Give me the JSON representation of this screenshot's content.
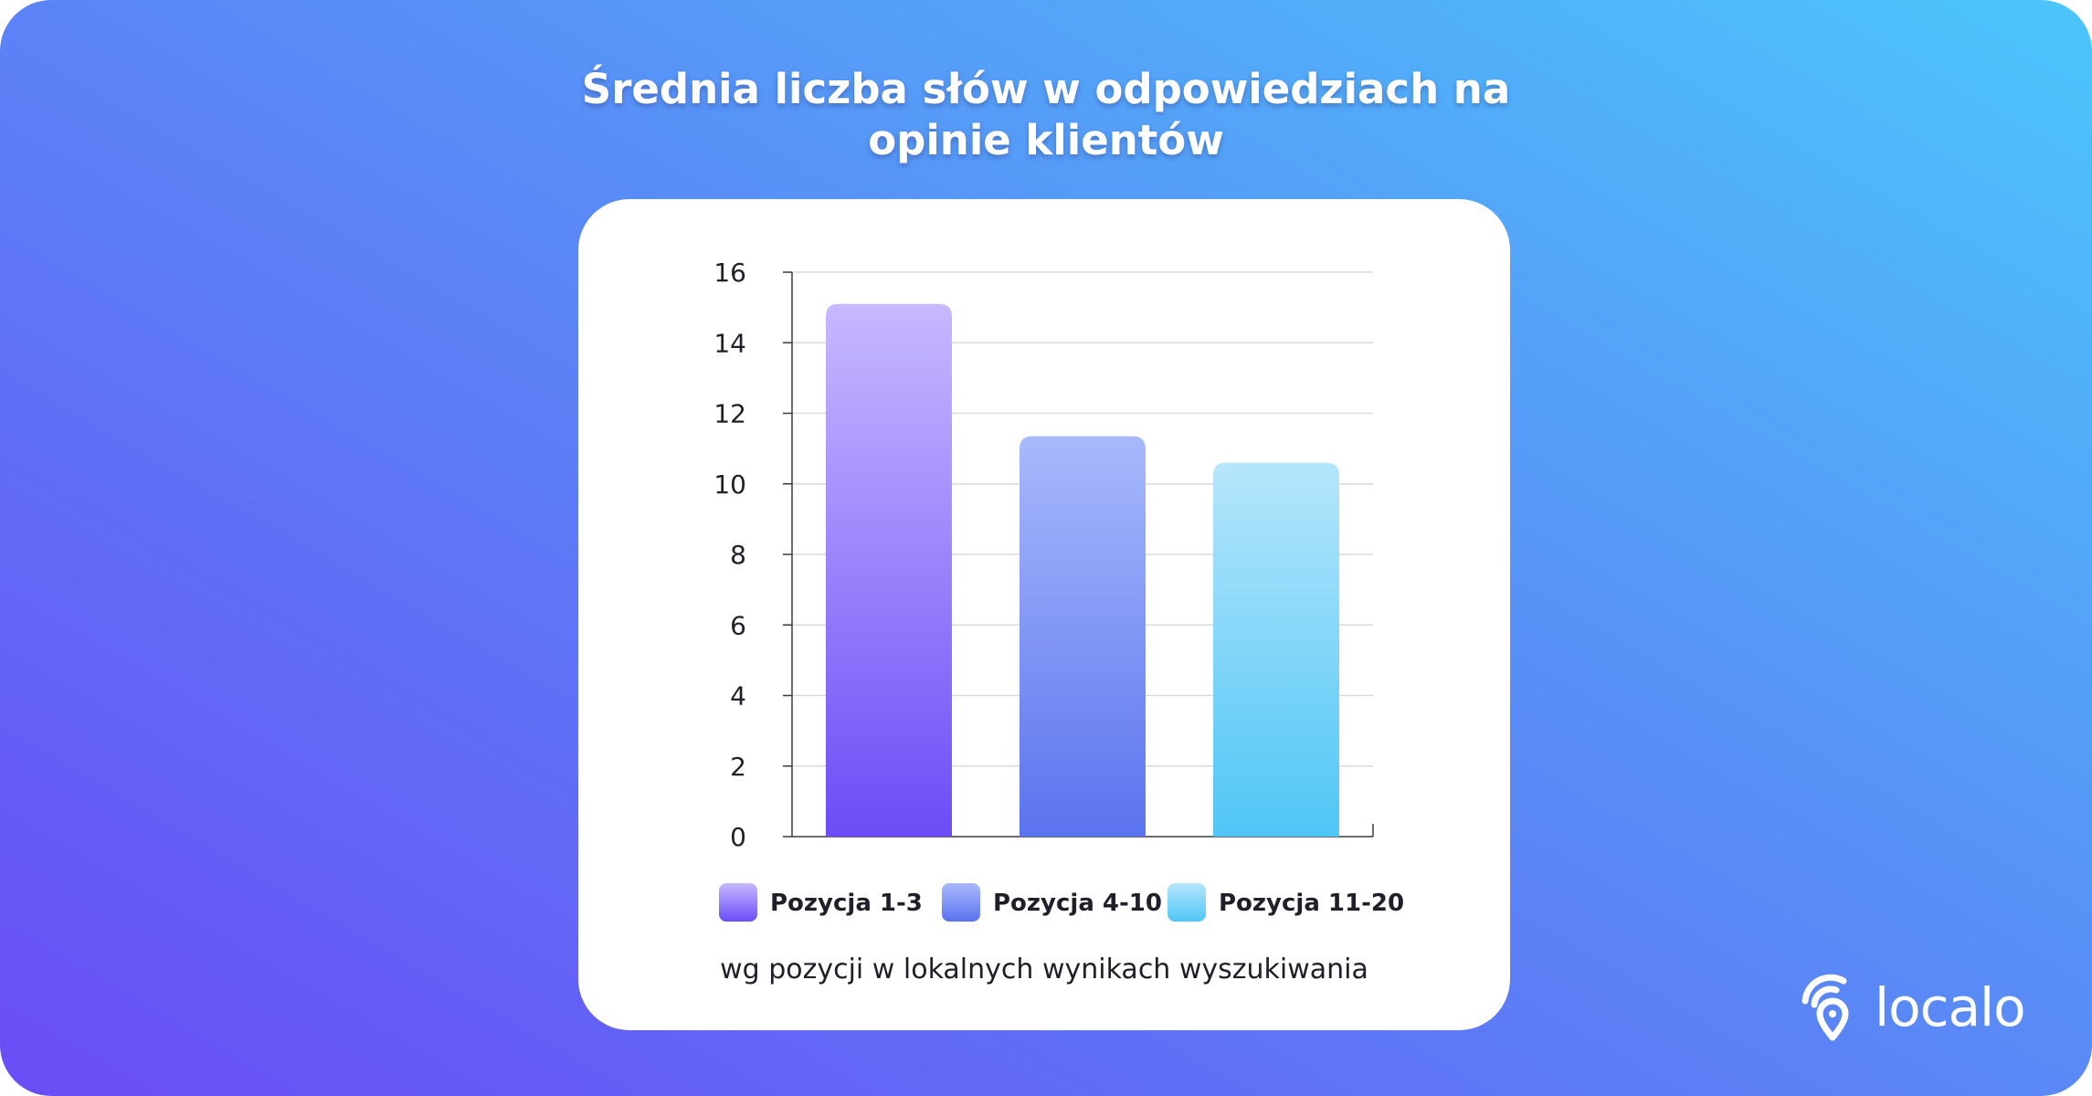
{
  "title_line1": "Średnia liczba słów w odpowiedziach na",
  "title_line2": "opinie klientów",
  "brand": {
    "name": "localo",
    "icon": "location-pin-icon"
  },
  "colors": {
    "background_start": "#6a4cf6",
    "background_end": "#4cc6fb",
    "series": [
      {
        "top": "#c7b8ff",
        "bottom": "#6c4cf7"
      },
      {
        "top": "#a8b9fb",
        "bottom": "#5a73ef"
      },
      {
        "top": "#b5e6fb",
        "bottom": "#4fc6f6"
      }
    ]
  },
  "chart_data": {
    "type": "bar",
    "categories": [
      "Pozycja 1-3",
      "Pozycja 4-10",
      "Pozycja 11-20"
    ],
    "values": [
      15.1,
      11.35,
      10.6
    ],
    "legend": [
      "Pozycja 1-3",
      "Pozycja 4-10",
      "Pozycja 11-20"
    ],
    "legend_position": "bottom",
    "xlabel": "wg pozycji w lokalnych wynikach wyszukiwania",
    "ylabel": "",
    "ylim": [
      0,
      16
    ],
    "yticks": [
      0,
      2,
      4,
      6,
      8,
      10,
      12,
      14,
      16
    ],
    "grid": true
  }
}
